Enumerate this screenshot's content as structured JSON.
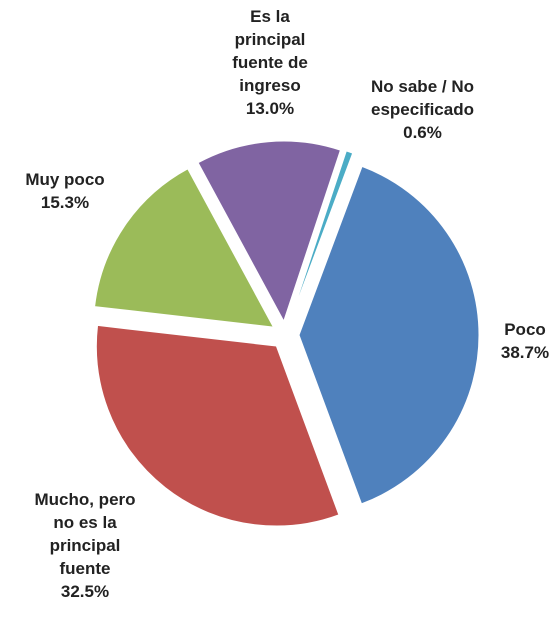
{
  "chart_data": {
    "type": "pie",
    "categories": [
      "Poco",
      "Mucho, pero no es la principal fuente",
      "Muy poco",
      "Es la principal fuente de ingreso",
      "No sabe / No especificado"
    ],
    "values": [
      38.7,
      32.5,
      15.3,
      13.0,
      0.6
    ],
    "value_labels": [
      "38.7%",
      "32.5%",
      "15.3%",
      "13.0%",
      "0.6%"
    ],
    "colors": [
      "#4f81bd",
      "#c0504d",
      "#9bbb59",
      "#8064a2",
      "#4bacc6"
    ]
  }
}
